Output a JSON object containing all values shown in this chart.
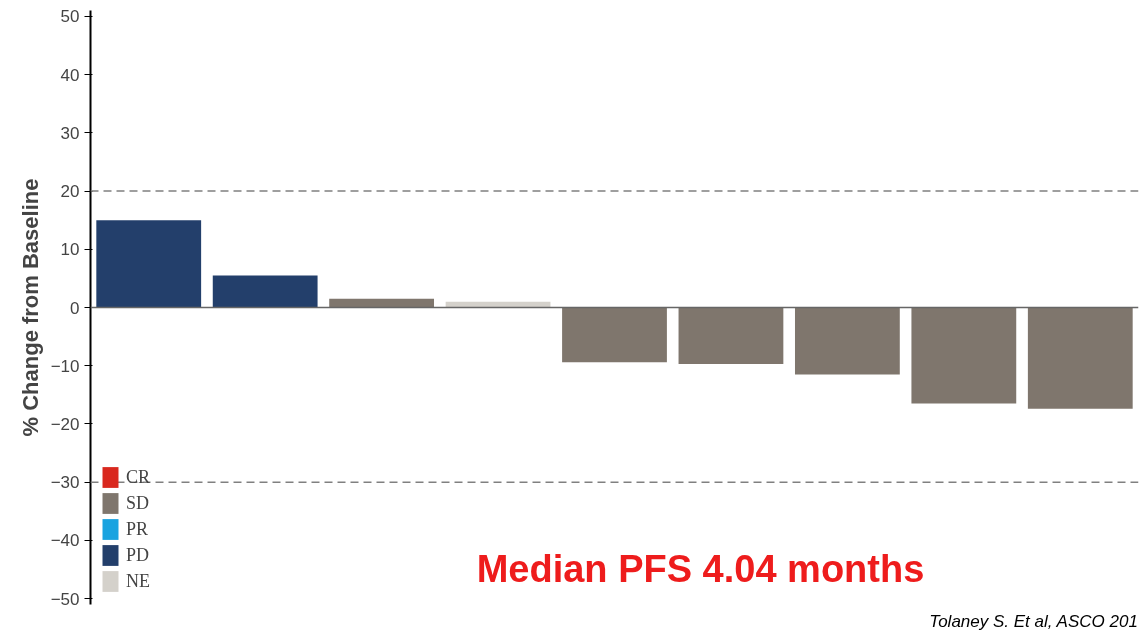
{
  "chart_data": {
    "type": "bar",
    "ylabel": "% Change from Baseline",
    "categories": [
      null,
      null,
      null,
      null,
      null,
      null,
      null,
      null,
      null
    ],
    "stacked": true,
    "series": [
      {
        "name": "CR",
        "color": "#d9281e",
        "values": [
          null,
          null,
          null,
          null,
          null,
          null,
          null,
          null,
          null
        ]
      },
      {
        "name": "SD",
        "color": "#7f766d",
        "values": [
          null,
          null,
          1.5,
          null,
          -9.4,
          -9.7,
          -11.5,
          -16.5,
          -17.4
        ]
      },
      {
        "name": "PR",
        "color": "#19a3e0",
        "values": [
          null,
          null,
          null,
          null,
          null,
          null,
          null,
          null,
          null
        ]
      },
      {
        "name": "PD",
        "color": "#233f6b",
        "values": [
          15,
          5.5,
          null,
          null,
          null,
          null,
          null,
          null,
          null
        ]
      },
      {
        "name": "NE",
        "color": "#d4d1cb",
        "values": [
          null,
          null,
          null,
          1,
          null,
          null,
          null,
          null,
          null
        ]
      }
    ],
    "ylim": [
      -51,
      51
    ],
    "yticks": [
      -50,
      -40,
      -30,
      -20,
      -10,
      0,
      10,
      20,
      30,
      40,
      50
    ],
    "grid": false,
    "legend": "bottom left",
    "ref_lines": [
      {
        "axis": "y",
        "value": 20,
        "color": "#808080",
        "line_style": "dashed"
      },
      {
        "axis": "y",
        "value": -30,
        "color": "#808080",
        "line_style": "dashed"
      }
    ],
    "annotations": [
      "Median PFS 4.04 months",
      "Tolaney S. Et al, ASCO 201"
    ]
  }
}
